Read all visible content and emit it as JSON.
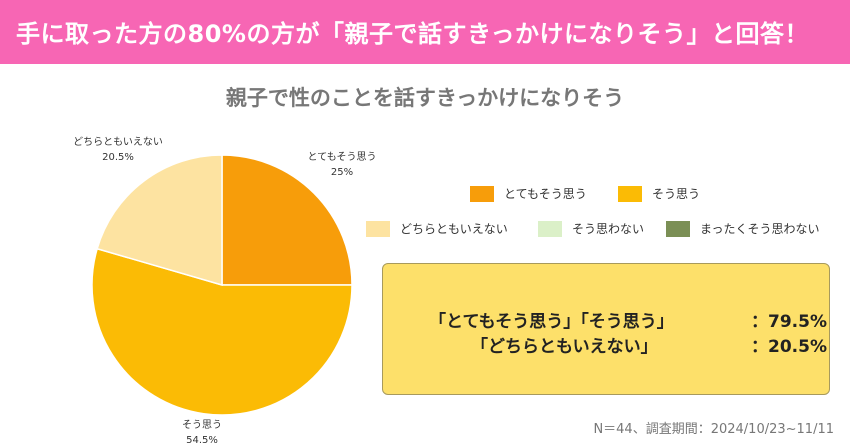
{
  "header": {
    "title": "手に取った方の80%の方が「親子で話すきっかけになりそう」と回答！"
  },
  "chart_data": {
    "type": "pie",
    "title": "親子で性のことを話すきっかけになりそう",
    "slices": [
      {
        "name": "とてもそう思う",
        "value": 25,
        "label": "25%",
        "color": "#f79d0a"
      },
      {
        "name": "そう思う",
        "value": 54.5,
        "label": "54.5%",
        "color": "#fbbb05"
      },
      {
        "name": "どちらともいえない",
        "value": 20.5,
        "label": "20.5%",
        "color": "#fde3a1"
      },
      {
        "name": "そう思わない",
        "value": 0,
        "label": "",
        "color": "#dbf0c8"
      },
      {
        "name": "まったくそう思わない",
        "value": 0,
        "label": "",
        "color": "#7b8f55"
      }
    ],
    "legend_position": "right"
  },
  "summary": {
    "line1_label": "「とてもそう思う」「そう思う」",
    "line1_value": "：79.5%",
    "line2_label": "「どちらともいえない」",
    "line2_value": "：20.5%"
  },
  "footnote": "N＝44、調査期間：2024/10/23~11/11"
}
